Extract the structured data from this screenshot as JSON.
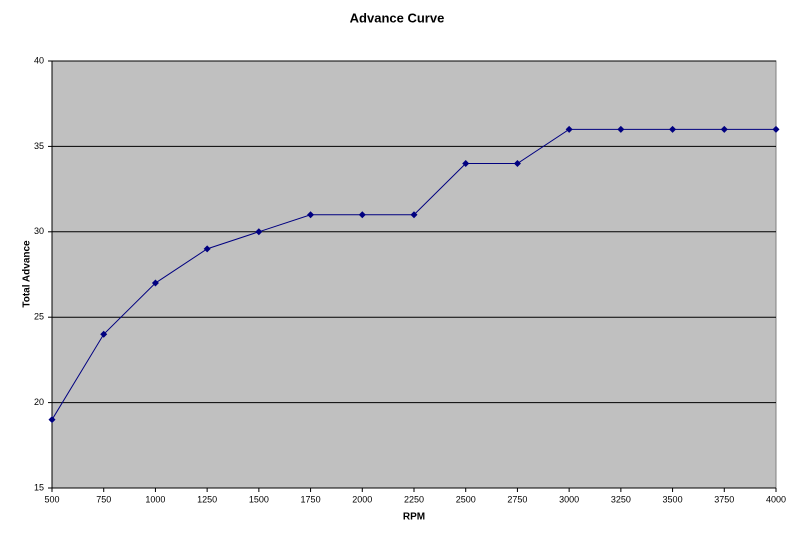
{
  "chart_data": {
    "type": "line",
    "title": "Advance Curve",
    "x_label": "RPM",
    "y_label": "Total Advance",
    "x": [
      500,
      750,
      1000,
      1250,
      1500,
      1750,
      2000,
      2250,
      2500,
      2750,
      3000,
      3250,
      3500,
      3750,
      4000
    ],
    "series": [
      {
        "color": "#000080",
        "values": [
          19,
          24,
          27,
          29,
          30,
          31,
          31,
          31,
          34,
          34,
          36,
          36,
          36,
          36,
          36
        ]
      }
    ],
    "xlim": [
      500,
      4000
    ],
    "xticks": [
      500,
      750,
      1000,
      1250,
      1500,
      1750,
      2000,
      2250,
      2500,
      2750,
      3000,
      3250,
      3500,
      3750,
      4000
    ],
    "ylim": [
      15,
      40
    ],
    "yticks": [
      15,
      20,
      25,
      30,
      35,
      40
    ],
    "grid": true,
    "plot_background": "#c0c0c0"
  }
}
